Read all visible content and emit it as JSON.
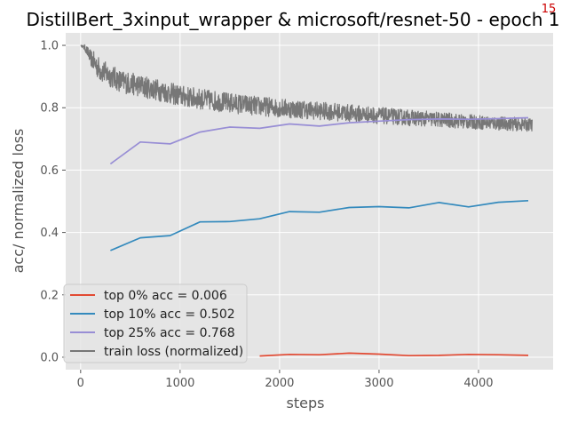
{
  "chart_data": {
    "type": "line",
    "title": "DistillBert_3xinput_wrapper & microsoft/resnet-50 - epoch 1",
    "corner_note": "15",
    "xlabel": "steps",
    "ylabel": "acc/ normalized loss",
    "xlim": [
      -150,
      4750
    ],
    "ylim": [
      -0.04,
      1.04
    ],
    "xticks": [
      0,
      1000,
      2000,
      3000,
      4000
    ],
    "yticks": [
      0.0,
      0.2,
      0.4,
      0.6,
      0.8,
      1.0
    ],
    "xtick_labels": [
      "0",
      "1000",
      "2000",
      "3000",
      "4000"
    ],
    "ytick_labels": [
      "0.0",
      "0.2",
      "0.4",
      "0.6",
      "0.8",
      "1.0"
    ],
    "grid": true,
    "legend_position": "lower-left",
    "series": [
      {
        "name": "top 0% acc = 0.006",
        "color": "#e24a33",
        "x": [
          1800,
          2100,
          2400,
          2700,
          3000,
          3300,
          3600,
          3900,
          4200,
          4500
        ],
        "y": [
          0.004,
          0.009,
          0.008,
          0.013,
          0.01,
          0.005,
          0.006,
          0.009,
          0.008,
          0.006
        ]
      },
      {
        "name": "top 10% acc = 0.502",
        "color": "#348abd",
        "x": [
          300,
          600,
          900,
          1200,
          1500,
          1800,
          2100,
          2400,
          2700,
          3000,
          3300,
          3600,
          3900,
          4200,
          4500
        ],
        "y": [
          0.342,
          0.383,
          0.39,
          0.434,
          0.435,
          0.444,
          0.467,
          0.465,
          0.48,
          0.483,
          0.479,
          0.496,
          0.482,
          0.497,
          0.502
        ]
      },
      {
        "name": "top 25% acc = 0.768",
        "color": "#988ed5",
        "x": [
          300,
          600,
          900,
          1200,
          1500,
          1800,
          2100,
          2400,
          2700,
          3000,
          3300,
          3600,
          3900,
          4200,
          4500
        ],
        "y": [
          0.62,
          0.69,
          0.684,
          0.722,
          0.738,
          0.734,
          0.748,
          0.741,
          0.752,
          0.757,
          0.762,
          0.764,
          0.763,
          0.765,
          0.768
        ]
      },
      {
        "name": "train loss (normalized)",
        "color": "#777777",
        "trend": {
          "x": [
            0,
            50,
            100,
            200,
            400,
            600,
            800,
            1000,
            1200,
            1500,
            1800,
            2100,
            2400,
            2700,
            3000,
            3300,
            3600,
            3900,
            4200,
            4540
          ],
          "y": [
            1.0,
            0.99,
            0.96,
            0.92,
            0.885,
            0.87,
            0.855,
            0.838,
            0.828,
            0.815,
            0.805,
            0.797,
            0.79,
            0.783,
            0.775,
            0.768,
            0.762,
            0.755,
            0.75,
            0.745
          ]
        },
        "noise_amplitude": 0.028
      }
    ]
  }
}
